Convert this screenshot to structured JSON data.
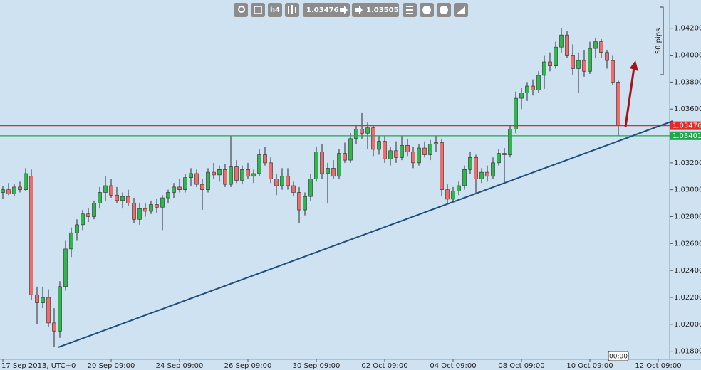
{
  "toolbar": {
    "bid": "1.03476",
    "ask": "1.03505"
  },
  "chart_data": {
    "type": "candlestick",
    "up_color": "#2db84d",
    "down_color": "#f26b6b",
    "open": [
      1.0298,
      1.03,
      1.0297,
      1.0302,
      1.03,
      1.031,
      1.0222,
      1.0216,
      1.022,
      1.0201,
      1.0195,
      1.0228,
      1.0256,
      1.0268,
      1.0274,
      1.0282,
      1.028,
      1.029,
      1.0298,
      1.0303,
      1.0296,
      1.0292,
      1.0295,
      1.029,
      1.0278,
      1.0286,
      1.0284,
      1.0289,
      1.0287,
      1.0294,
      1.0298,
      1.0302,
      1.03,
      1.0309,
      1.0312,
      1.0304,
      1.03,
      1.0313,
      1.0311,
      1.0315,
      1.0304,
      1.0317,
      1.0307,
      1.0315,
      1.031,
      1.0312,
      1.0326,
      1.032,
      1.0308,
      1.0303,
      1.031,
      1.0303,
      1.0298,
      1.0285,
      1.0295,
      1.0308,
      1.0328,
      1.0312,
      1.0316,
      1.031,
      1.0327,
      1.0322,
      1.0338,
      1.0345,
      1.0342,
      1.0346,
      1.033,
      1.0336,
      1.0323,
      1.0329,
      1.0324,
      1.0333,
      1.0328,
      1.032,
      1.0331,
      1.0326,
      1.0334,
      1.0335,
      1.03,
      1.0293,
      1.0299,
      1.0303,
      1.0315,
      1.0324,
      1.0308,
      1.0313,
      1.031,
      1.032,
      1.0327,
      1.0326,
      1.0345,
      1.0368,
      1.0372,
      1.0377,
      1.0374,
      1.0385,
      1.0395,
      1.0392,
      1.0406,
      1.0415,
      1.04,
      1.039,
      1.0396,
      1.0388,
      1.0405,
      1.041,
      1.0402,
      1.0396,
      1.038
    ],
    "high": [
      1.0303,
      1.0305,
      1.0304,
      1.0306,
      1.0316,
      1.0315,
      1.0228,
      1.0228,
      1.0226,
      1.0212,
      1.0232,
      1.0262,
      1.0272,
      1.0278,
      1.0285,
      1.0286,
      1.0292,
      1.0302,
      1.031,
      1.0308,
      1.0302,
      1.0298,
      1.03,
      1.0294,
      1.029,
      1.029,
      1.0292,
      1.0293,
      1.0296,
      1.03,
      1.0305,
      1.0308,
      1.0312,
      1.0316,
      1.0315,
      1.0308,
      1.0316,
      1.032,
      1.0318,
      1.0319,
      1.034,
      1.0322,
      1.0318,
      1.032,
      1.0315,
      1.033,
      1.0332,
      1.0324,
      1.0312,
      1.0316,
      1.0316,
      1.0306,
      1.0302,
      1.0298,
      1.0312,
      1.0332,
      1.0334,
      1.032,
      1.0322,
      1.033,
      1.0335,
      1.0342,
      1.0348,
      1.0357,
      1.035,
      1.0348,
      1.034,
      1.034,
      1.0332,
      1.0336,
      1.034,
      1.0338,
      1.0332,
      1.0334,
      1.0336,
      1.0337,
      1.034,
      1.0338,
      1.0304,
      1.0302,
      1.0306,
      1.0318,
      1.0328,
      1.0326,
      1.0316,
      1.0318,
      1.0324,
      1.033,
      1.0331,
      1.0348,
      1.0373,
      1.0376,
      1.038,
      1.0382,
      1.0388,
      1.04,
      1.0402,
      1.041,
      1.042,
      1.0418,
      1.0408,
      1.0402,
      1.0404,
      1.041,
      1.0413,
      1.0412,
      1.0404,
      1.04,
      1.0381
    ],
    "low": [
      1.0293,
      1.0296,
      1.0295,
      1.0298,
      1.0299,
      1.0218,
      1.02,
      1.0212,
      1.0198,
      1.0183,
      1.019,
      1.0225,
      1.025,
      1.0262,
      1.027,
      1.0276,
      1.0278,
      1.0286,
      1.0292,
      1.0294,
      1.029,
      1.0286,
      1.0288,
      1.0275,
      1.0274,
      1.028,
      1.0282,
      1.0283,
      1.027,
      1.029,
      1.0294,
      1.0298,
      1.0298,
      1.0303,
      1.0302,
      1.0285,
      1.0298,
      1.0308,
      1.0306,
      1.0302,
      1.0302,
      1.0305,
      1.0304,
      1.0308,
      1.0305,
      1.031,
      1.0318,
      1.0305,
      1.0296,
      1.03,
      1.03,
      1.0295,
      1.0275,
      1.0281,
      1.0292,
      1.0306,
      1.0308,
      1.029,
      1.0308,
      1.0308,
      1.032,
      1.032,
      1.0334,
      1.0338,
      1.033,
      1.0325,
      1.0326,
      1.032,
      1.0318,
      1.032,
      1.0322,
      1.0325,
      1.0316,
      1.0318,
      1.0324,
      1.0322,
      1.0328,
      1.0295,
      1.029,
      1.0291,
      1.0296,
      1.03,
      1.0312,
      1.0297,
      1.0305,
      1.0306,
      1.0308,
      1.0318,
      1.0305,
      1.0324,
      1.0342,
      1.036,
      1.0366,
      1.037,
      1.0372,
      1.0375,
      1.0388,
      1.039,
      1.0402,
      1.0398,
      1.0385,
      1.0372,
      1.0384,
      1.0386,
      1.0398,
      1.0398,
      1.039,
      1.0378,
      1.034
    ],
    "close": [
      1.03,
      1.0297,
      1.0302,
      1.03,
      1.0312,
      1.0222,
      1.0216,
      1.022,
      1.0201,
      1.0195,
      1.0228,
      1.0256,
      1.0268,
      1.0274,
      1.0282,
      1.028,
      1.029,
      1.0298,
      1.0303,
      1.0296,
      1.0292,
      1.0295,
      1.029,
      1.0278,
      1.0286,
      1.0284,
      1.0289,
      1.0287,
      1.0294,
      1.0298,
      1.0302,
      1.03,
      1.0309,
      1.0312,
      1.0304,
      1.03,
      1.0313,
      1.0311,
      1.0315,
      1.0304,
      1.0317,
      1.0307,
      1.0315,
      1.031,
      1.0312,
      1.0326,
      1.032,
      1.0308,
      1.0303,
      1.031,
      1.0303,
      1.0298,
      1.0285,
      1.0295,
      1.0308,
      1.0328,
      1.0312,
      1.0316,
      1.031,
      1.0327,
      1.0322,
      1.0338,
      1.0345,
      1.0342,
      1.0346,
      1.033,
      1.0336,
      1.0323,
      1.0329,
      1.0324,
      1.0333,
      1.0328,
      1.032,
      1.0331,
      1.0326,
      1.0334,
      1.0335,
      1.03,
      1.0293,
      1.0299,
      1.0303,
      1.0315,
      1.0324,
      1.0308,
      1.0313,
      1.031,
      1.032,
      1.0327,
      1.0326,
      1.0345,
      1.0368,
      1.0372,
      1.0377,
      1.0374,
      1.0385,
      1.0395,
      1.0392,
      1.0406,
      1.0415,
      1.04,
      1.039,
      1.0396,
      1.0388,
      1.0405,
      1.041,
      1.0402,
      1.0396,
      1.038,
      1.0348
    ],
    "xlim": [
      -0.5,
      117
    ],
    "xticks": [
      {
        "value": 0,
        "label": "17 Sep 2013, UTC+0"
      },
      {
        "value": 19,
        "label": "20 Sep 09:00"
      },
      {
        "value": 31,
        "label": "24 Sep 09:00"
      },
      {
        "value": 43,
        "label": "26 Sep 09:00"
      },
      {
        "value": 55,
        "label": "30 Sep 09:00"
      },
      {
        "value": 67,
        "label": "02 Oct 09:00"
      },
      {
        "value": 79,
        "label": "04 Oct 09:00"
      },
      {
        "value": 91,
        "label": "08 Oct 09:00"
      },
      {
        "value": 103,
        "label": "10 Oct 09:00"
      },
      {
        "value": 115,
        "label": "12 Oct 09:00"
      }
    ],
    "ylim": [
      1.0174,
      1.0441
    ],
    "yticks": [
      {
        "value": 1.018,
        "label": "1.01800"
      },
      {
        "value": 1.02,
        "label": "1.02000"
      },
      {
        "value": 1.022,
        "label": "1.02200"
      },
      {
        "value": 1.024,
        "label": "1.02400"
      },
      {
        "value": 1.026,
        "label": "1.02600"
      },
      {
        "value": 1.028,
        "label": "1.02800"
      },
      {
        "value": 1.03,
        "label": "1.03000"
      },
      {
        "value": 1.032,
        "label": "1.03200"
      },
      {
        "value": 1.034,
        "label": "1.03400"
      },
      {
        "value": 1.036,
        "label": "1.03600"
      },
      {
        "value": 1.038,
        "label": "1.03800"
      },
      {
        "value": 1.04,
        "label": "1.04000"
      },
      {
        "value": 1.042,
        "label": "1.04200"
      }
    ],
    "price_lines": [
      {
        "value": 1.03476,
        "color": "#e02b2b"
      },
      {
        "value": 1.03401,
        "color": "#1fa84a"
      }
    ],
    "trendline": {
      "x": [
        9.75,
        117.5
      ],
      "y": [
        1.0183,
        1.0351
      ],
      "color": "#1f4e79"
    },
    "ruler_label": "50 pips",
    "crosshair_time": "00:00"
  }
}
